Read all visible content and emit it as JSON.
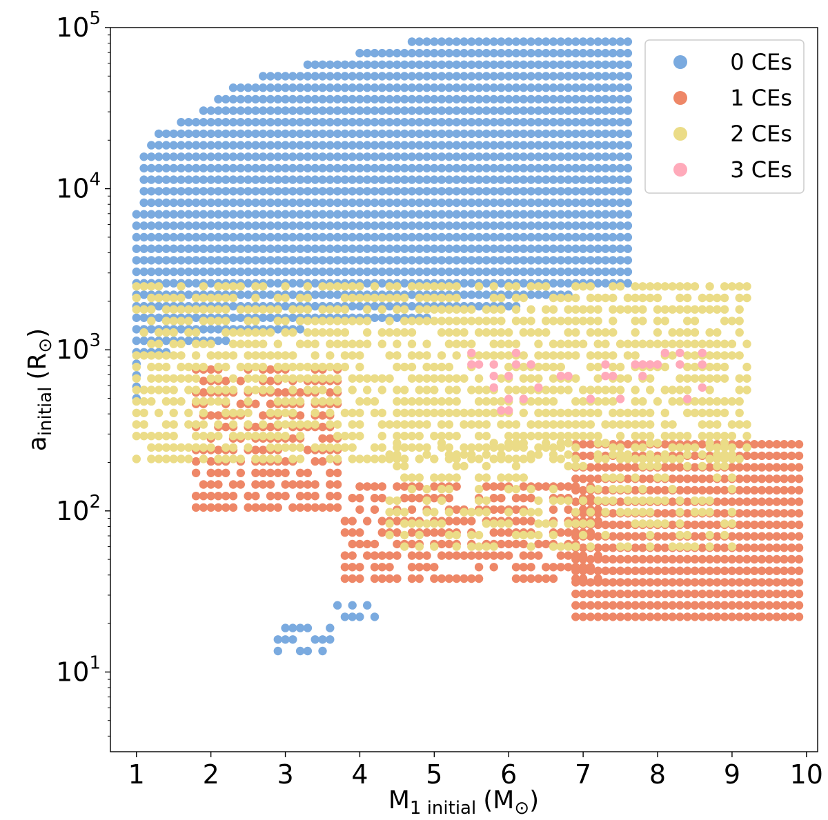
{
  "chart_data": {
    "type": "scatter",
    "title": "",
    "xlabel": {
      "main": "M",
      "sub": "1 initial",
      "unit": "(M",
      "sun": "⊙",
      "close": ")"
    },
    "ylabel": {
      "main": "a",
      "sub": "initial",
      "unit": "(R",
      "sun": "⊙",
      "close": ")"
    },
    "xlim": [
      0.65,
      10.15
    ],
    "ylim": [
      3.2,
      100000
    ],
    "yscale": "log",
    "grid": false,
    "legend_position": "top-right",
    "x_ticks": [
      "1",
      "2",
      "3",
      "4",
      "5",
      "6",
      "7",
      "8",
      "9",
      "10"
    ],
    "y_ticks": [
      {
        "base": "10",
        "exp": "1",
        "value": 10
      },
      {
        "base": "10",
        "exp": "2",
        "value": 100
      },
      {
        "base": "10",
        "exp": "3",
        "value": 1000
      },
      {
        "base": "10",
        "exp": "4",
        "value": 10000
      },
      {
        "base": "10",
        "exp": "5",
        "value": 100000
      }
    ],
    "grid_spacing": {
      "x_step": 0.1,
      "log10_y_step": 0.0714
    },
    "series": [
      {
        "name": "0 CEs",
        "color": "#7aaadf",
        "regions": [
          {
            "x_range": [
              1.0,
              7.6
            ],
            "y_range": [
              500,
              95000
            ],
            "upper_edge": [
              [
                1.0,
                7000
              ],
              [
                1.1,
                16500
              ],
              [
                1.3,
                23000
              ],
              [
                1.8,
                28000
              ],
              [
                2.1,
                39000
              ],
              [
                2.4,
                46000
              ],
              [
                2.9,
                55000
              ],
              [
                3.8,
                65000
              ],
              [
                4.2,
                78000
              ],
              [
                6.3,
                95000
              ],
              [
                7.6,
                95000
              ]
            ],
            "lower_edge": [
              [
                1.0,
                500
              ],
              [
                1.1,
                850
              ],
              [
                1.5,
                1000
              ],
              [
                3.5,
                1400
              ],
              [
                5.5,
                1650
              ],
              [
                6.6,
                2000
              ],
              [
                7.0,
                2350
              ],
              [
                7.6,
                2500
              ]
            ]
          },
          {
            "x_range": [
              2.9,
              3.6
            ],
            "y_range": [
              13.5,
              19
            ],
            "sample": "cluster"
          },
          {
            "x_range": [
              3.7,
              4.2
            ],
            "y_range": [
              22,
              27
            ],
            "sample": "cluster"
          }
        ]
      },
      {
        "name": "1 CEs",
        "color": "#ee8767",
        "regions": [
          {
            "x_range": [
              1.8,
              3.7
            ],
            "y_range": [
              105,
              800
            ],
            "sample": "band"
          },
          {
            "x_range": [
              3.8,
              7.2
            ],
            "y_range": [
              38,
              145
            ],
            "sample": "band"
          },
          {
            "x_range": [
              6.9,
              9.9
            ],
            "y_range": [
              22,
              300
            ],
            "sample": "block"
          }
        ]
      },
      {
        "name": "2 CEs",
        "color": "#ebdc87",
        "regions": [
          {
            "x_range": [
              1.0,
              9.2
            ],
            "y_range": [
              210,
              2500
            ],
            "sample": "band"
          },
          {
            "x_range": [
              4.4,
              9.0
            ],
            "y_range": [
              60,
              310
            ],
            "sample": "strip"
          }
        ]
      },
      {
        "name": "3 CEs",
        "color": "#ffaaba",
        "regions": [
          {
            "x_range": [
              5.3,
              8.6
            ],
            "y_range": [
              420,
              1000
            ],
            "sample": "sparse"
          }
        ]
      }
    ]
  }
}
